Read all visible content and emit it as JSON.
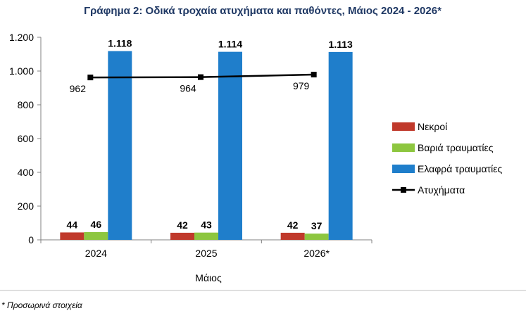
{
  "chart_data": {
    "type": "bar",
    "title": "Γράφημα 2: Οδικά τροχαία ατυχήματα και παθόντες, Μάιος 2024 - 2026*",
    "xlabel": "Μάιος",
    "ylabel": "",
    "categories": [
      "2024",
      "2025",
      "2026*"
    ],
    "ylim": [
      0,
      1200
    ],
    "yticks": [
      0,
      200,
      400,
      600,
      800,
      1000,
      1200
    ],
    "ytick_labels": [
      "0",
      "200",
      "400",
      "600",
      "800",
      "1.000",
      "1.200"
    ],
    "series": [
      {
        "name": "Νεκροί",
        "kind": "bar",
        "color": "#c0392b",
        "values": [
          44,
          42,
          42
        ],
        "labels": [
          "44",
          "42",
          "42"
        ]
      },
      {
        "name": "Βαριά τραυματίες",
        "kind": "bar",
        "color": "#8dc63f",
        "values": [
          46,
          43,
          37
        ],
        "labels": [
          "46",
          "43",
          "37"
        ]
      },
      {
        "name": "Ελαφρά τραυματίες",
        "kind": "bar",
        "color": "#1f7ecb",
        "values": [
          1118,
          1114,
          1113
        ],
        "labels": [
          "1.118",
          "1.114",
          "1.113"
        ]
      },
      {
        "name": "Ατυχήματα",
        "kind": "line",
        "color": "#000000",
        "values": [
          962,
          964,
          979
        ],
        "labels": [
          "962",
          "964",
          "979"
        ]
      }
    ],
    "grid": false,
    "legend": "right"
  },
  "footnote": "* Προσωρινά στοιχεία"
}
